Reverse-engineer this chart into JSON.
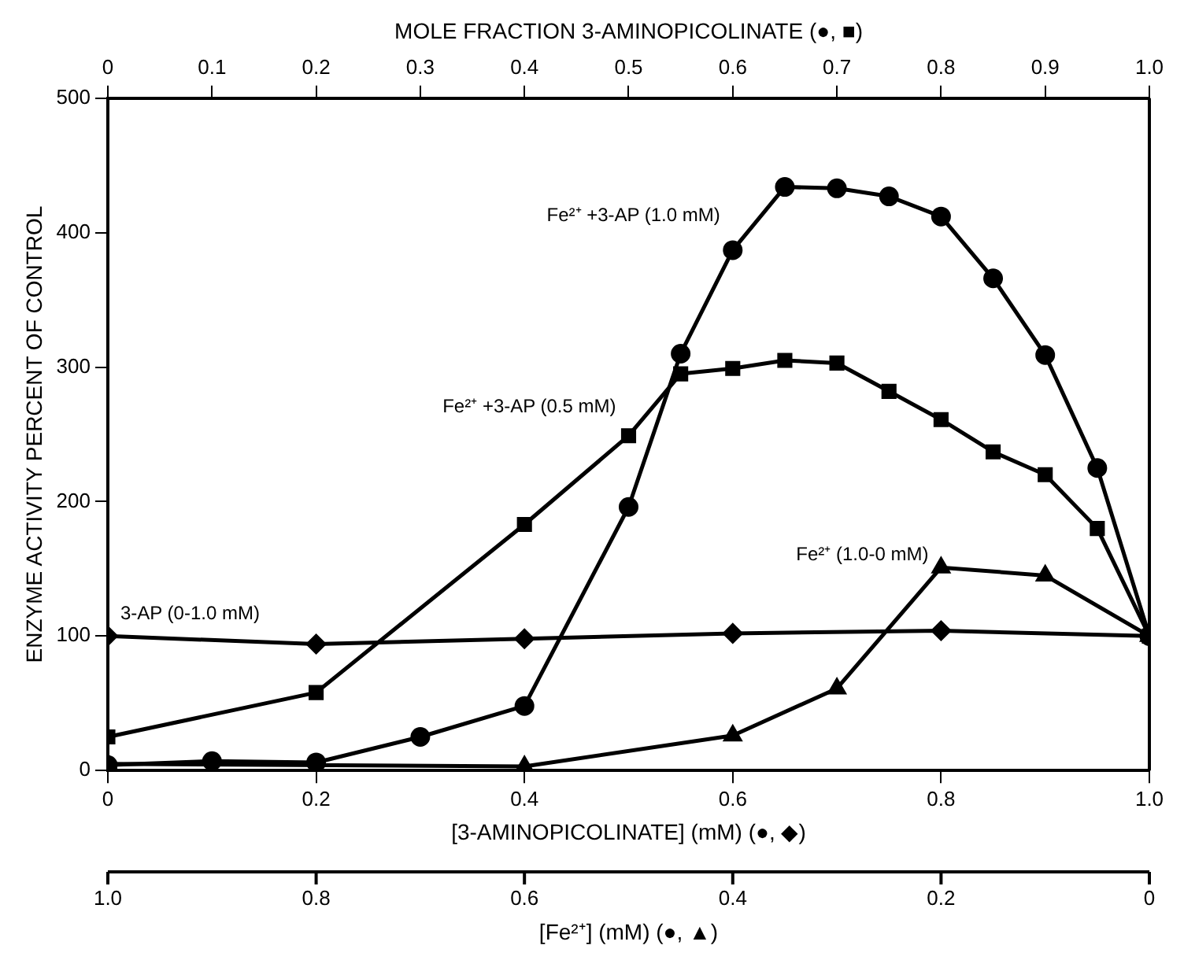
{
  "chart_data": {
    "type": "line",
    "xlabel": "[3-AMINOPICOLINATE] (mM) (●, ◆)",
    "x2label": "MOLE FRACTION 3-AMINOPICOLINATE (●, ■)",
    "annotations": [
      "1.0",
      "0.8",
      "0.6",
      "0.4",
      "0.2",
      "0",
      "[Fe²⁺] (mM) (●, ▲)"
    ],
    "ylabel": "ENZYME ACTIVITY PERCENT OF CONTROL",
    "xlim": [
      0,
      1
    ],
    "xticks": [
      0,
      0.2,
      0.4,
      0.6,
      0.8,
      {
        "value": 1,
        "label": "1.0"
      }
    ],
    "x2lim": [
      0,
      1
    ],
    "x2ticks": [
      0,
      0.1,
      0.2,
      0.3,
      0.4,
      0.5,
      0.6,
      0.7,
      0.8,
      0.9,
      {
        "value": 1,
        "label": "1.0"
      }
    ],
    "ylim": [
      0,
      500
    ],
    "yticks": [
      0,
      100,
      200,
      300,
      400,
      500
    ],
    "grid": false,
    "legend": false,
    "line_style": "solid",
    "series": [
      {
        "name": "Fe²⁺ +3-AP (1.0 mM)",
        "color": "#000000",
        "marker": "circle",
        "x": [
          0,
          0.1,
          0.2,
          0.3,
          0.4,
          0.5,
          0.55,
          0.6,
          0.65,
          0.7,
          0.75,
          0.8,
          0.85,
          0.9,
          0.95,
          1
        ],
        "values": [
          4,
          7,
          6,
          25,
          48,
          196,
          310,
          387,
          434,
          433,
          427,
          412,
          366,
          309,
          225,
          100
        ]
      },
      {
        "name": "Fe²⁺ +3-AP (0.5 mM)",
        "color": "#000000",
        "marker": "square",
        "x": [
          0,
          0.2,
          0.4,
          0.5,
          0.55,
          0.6,
          0.65,
          0.7,
          0.75,
          0.8,
          0.85,
          0.9,
          0.95,
          1
        ],
        "values": [
          25,
          58,
          183,
          249,
          295,
          299,
          305,
          303,
          282,
          261,
          237,
          220,
          180,
          100
        ]
      },
      {
        "name": "Fe²⁺ (1.0-0 mM)",
        "color": "#000000",
        "marker": "triangle",
        "x": [
          0,
          0.4,
          0.6,
          0.7,
          0.8,
          0.9,
          1
        ],
        "values": [
          5,
          3,
          26,
          61,
          151,
          145,
          100
        ]
      },
      {
        "name": "3-AP (0-1.0 mM)",
        "color": "#000000",
        "marker": "diamond",
        "x": [
          0,
          0.2,
          0.4,
          0.6,
          0.8,
          1
        ],
        "values": [
          100,
          94,
          98,
          102,
          104,
          100
        ]
      }
    ]
  }
}
